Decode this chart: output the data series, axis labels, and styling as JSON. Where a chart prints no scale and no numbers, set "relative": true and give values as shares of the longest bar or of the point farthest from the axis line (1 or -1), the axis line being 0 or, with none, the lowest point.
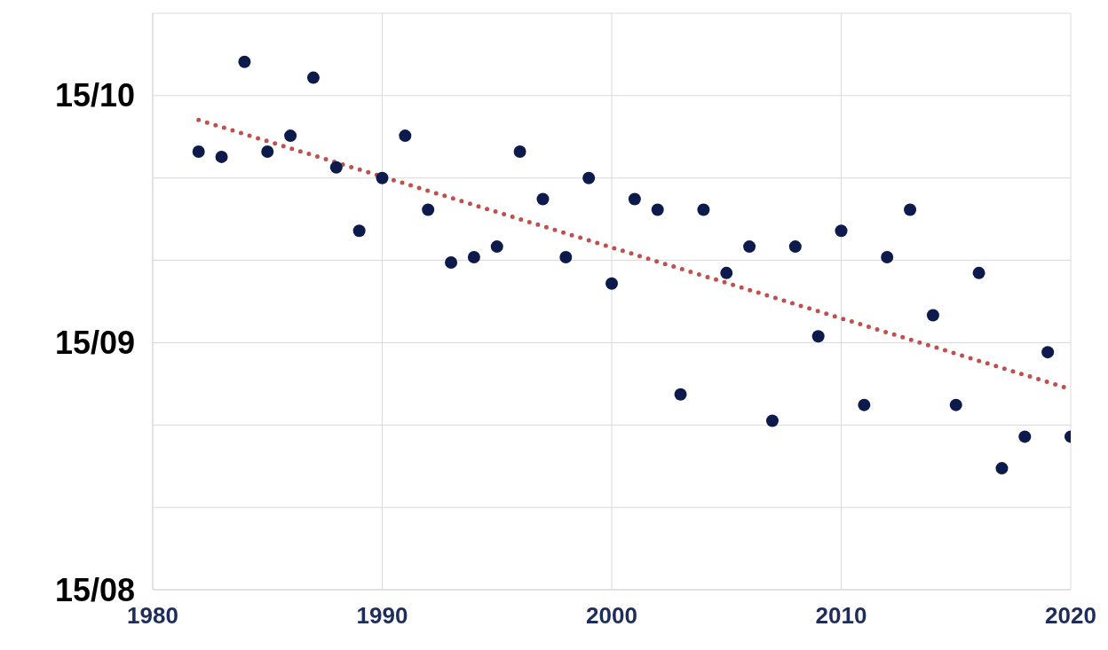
{
  "chart_data": {
    "type": "scatter",
    "relative": true,
    "xlim": [
      1980,
      2020
    ],
    "xticks": [
      1980,
      1990,
      2000,
      2010,
      2020
    ],
    "annotations": [
      "15/08",
      "15/09",
      "15/10"
    ],
    "grid": true,
    "marker": "circle",
    "series": [
      {
        "type": "scatter",
        "color": "#0d1b4c",
        "x": [
          1982,
          1983,
          1984,
          1985,
          1986,
          1987,
          1988,
          1989,
          1990,
          1991,
          1992,
          1993,
          1994,
          1995,
          1996,
          1997,
          1998,
          1999,
          2000,
          2001,
          2002,
          2003,
          2004,
          2005,
          2006,
          2007,
          2008,
          2009,
          2010,
          2011,
          2012,
          2013,
          2014,
          2015,
          2016,
          2017,
          2018,
          2019,
          2020
        ],
        "values": [
          0.83,
          0.82,
          1,
          0.83,
          0.86,
          0.97,
          0.8,
          0.68,
          0.78,
          0.86,
          0.72,
          0.62,
          0.63,
          0.65,
          0.83,
          0.74,
          0.63,
          0.78,
          0.58,
          0.74,
          0.72,
          0.37,
          0.72,
          0.6,
          0.65,
          0.32,
          0.65,
          0.48,
          0.68,
          0.35,
          0.63,
          0.72,
          0.52,
          0.35,
          0.6,
          0.23,
          0.29,
          0.45,
          0.29
        ]
      },
      {
        "type": "line",
        "color": "#c0504d",
        "line_style": "dotted",
        "marker": "none",
        "x": [
          1982,
          2020
        ],
        "values": [
          0.89,
          0.38
        ]
      }
    ]
  }
}
